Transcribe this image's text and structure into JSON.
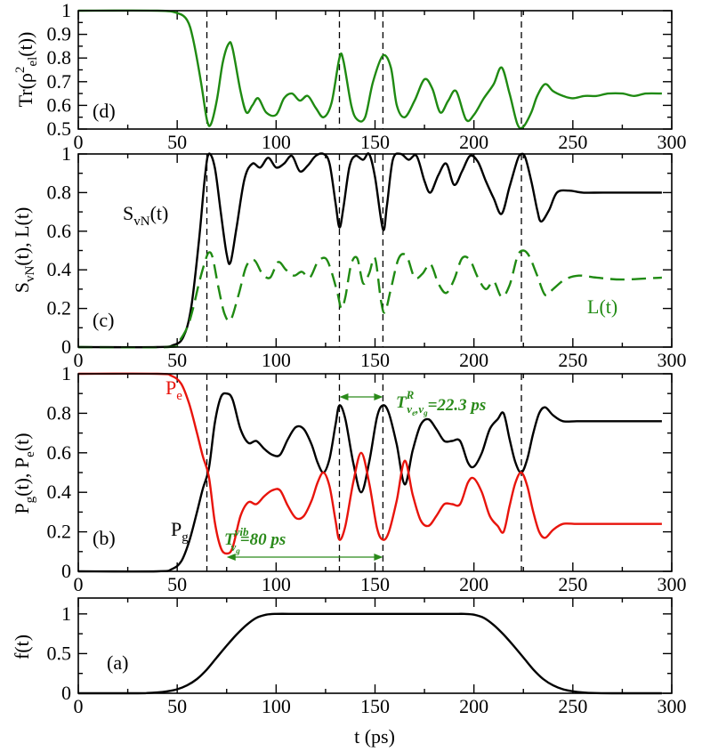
{
  "colors": {
    "black": "#000000",
    "green": "#1f8a12",
    "red": "#e8140c",
    "annotation": "#2a8a1a"
  },
  "shared": {
    "xlabel": "t (ps)",
    "xlim": [
      0,
      300
    ],
    "xticks": [
      "0",
      "50",
      "100",
      "150",
      "200",
      "250",
      "300"
    ],
    "vlines": [
      65,
      132,
      154,
      224
    ]
  },
  "chart_data": [
    {
      "id": "d",
      "type": "line",
      "panel_label": "(d)",
      "ylabel": "Tr(ρ²el(t))",
      "ylim": [
        0.5,
        1.0
      ],
      "yticks": [
        "0.5",
        "0.6",
        "0.7",
        "0.8",
        "0.9",
        "1"
      ],
      "series": [
        {
          "name": "Tr(rho^2_el)",
          "color": "#1f8a12",
          "style": "solid",
          "x": [
            0,
            40,
            50,
            55,
            58,
            62,
            65,
            67,
            70,
            73,
            76,
            78,
            82,
            85,
            88,
            91,
            95,
            100,
            104,
            108,
            112,
            116,
            120,
            124,
            128,
            132,
            134,
            138,
            141,
            145,
            149,
            154,
            158,
            161,
            165,
            170,
            175,
            179,
            183,
            187,
            191,
            196,
            200,
            205,
            210,
            214,
            218,
            222,
            225,
            229,
            232,
            236,
            240,
            245,
            250,
            256,
            262,
            268,
            275,
            281,
            287,
            295
          ],
          "y": [
            1.0,
            1.0,
            0.99,
            0.96,
            0.88,
            0.7,
            0.54,
            0.52,
            0.62,
            0.78,
            0.86,
            0.84,
            0.66,
            0.57,
            0.6,
            0.63,
            0.57,
            0.56,
            0.63,
            0.65,
            0.62,
            0.64,
            0.59,
            0.55,
            0.61,
            0.8,
            0.79,
            0.6,
            0.54,
            0.55,
            0.7,
            0.81,
            0.76,
            0.6,
            0.55,
            0.62,
            0.71,
            0.67,
            0.57,
            0.62,
            0.66,
            0.54,
            0.56,
            0.63,
            0.69,
            0.76,
            0.65,
            0.52,
            0.51,
            0.57,
            0.64,
            0.69,
            0.66,
            0.64,
            0.63,
            0.64,
            0.64,
            0.65,
            0.65,
            0.64,
            0.65,
            0.65
          ]
        }
      ]
    },
    {
      "id": "c",
      "type": "line",
      "panel_label": "(c)",
      "ylabel": "SvN(t), L(t)",
      "ylim": [
        0,
        1.0
      ],
      "yticks": [
        "0",
        "0.2",
        "0.4",
        "0.6",
        "0.8",
        "1"
      ],
      "curve_labels": {
        "svn": "SvN(t)",
        "l": "L(t)"
      },
      "series": [
        {
          "name": "S_vN(t)",
          "color": "#000000",
          "style": "solid",
          "x": [
            0,
            40,
            48,
            53,
            57,
            61,
            64,
            66,
            69,
            72,
            75,
            77,
            80,
            84,
            88,
            92,
            96,
            100,
            104,
            108,
            112,
            116,
            120,
            124,
            127,
            130,
            132,
            134,
            137,
            140,
            144,
            147,
            150,
            154,
            156,
            159,
            163,
            167,
            171,
            175,
            178,
            182,
            186,
            190,
            194,
            198,
            202,
            206,
            210,
            214,
            218,
            222,
            224,
            226,
            229,
            232,
            234,
            238,
            242,
            248,
            255,
            265,
            280,
            295
          ],
          "y": [
            0,
            0,
            0.01,
            0.05,
            0.2,
            0.55,
            0.88,
            1.0,
            0.93,
            0.7,
            0.48,
            0.44,
            0.62,
            0.87,
            0.95,
            0.93,
            0.98,
            0.93,
            0.95,
            0.99,
            0.91,
            0.94,
            0.99,
            1.0,
            0.95,
            0.75,
            0.62,
            0.72,
            0.93,
            0.99,
            0.97,
            1.0,
            0.88,
            0.61,
            0.73,
            0.97,
            1.0,
            0.97,
            0.99,
            0.86,
            0.8,
            0.89,
            0.95,
            0.84,
            0.91,
            0.99,
            0.96,
            0.86,
            0.77,
            0.69,
            0.83,
            0.97,
            1.0,
            0.98,
            0.86,
            0.71,
            0.65,
            0.71,
            0.8,
            0.81,
            0.8,
            0.8,
            0.8,
            0.8
          ]
        },
        {
          "name": "L(t)",
          "color": "#1f8a12",
          "style": "dashed",
          "x": [
            0,
            45,
            50,
            55,
            58,
            61,
            64,
            66,
            68,
            71,
            74,
            77,
            81,
            85,
            89,
            93,
            97,
            101,
            105,
            109,
            113,
            117,
            121,
            125,
            128,
            131,
            133,
            135,
            138,
            141,
            144,
            147,
            150,
            153,
            155,
            158,
            162,
            166,
            170,
            174,
            178,
            182,
            186,
            190,
            194,
            198,
            202,
            206,
            210,
            214,
            218,
            222,
            225,
            228,
            232,
            236,
            240,
            246,
            253,
            262,
            275,
            295
          ],
          "y": [
            0,
            0,
            0.02,
            0.1,
            0.2,
            0.33,
            0.44,
            0.49,
            0.46,
            0.3,
            0.17,
            0.14,
            0.27,
            0.42,
            0.45,
            0.38,
            0.36,
            0.44,
            0.4,
            0.37,
            0.39,
            0.36,
            0.44,
            0.46,
            0.39,
            0.28,
            0.2,
            0.26,
            0.43,
            0.46,
            0.33,
            0.38,
            0.46,
            0.24,
            0.18,
            0.3,
            0.46,
            0.47,
            0.36,
            0.38,
            0.43,
            0.33,
            0.28,
            0.35,
            0.46,
            0.45,
            0.36,
            0.3,
            0.34,
            0.26,
            0.32,
            0.47,
            0.5,
            0.47,
            0.37,
            0.27,
            0.3,
            0.35,
            0.37,
            0.36,
            0.35,
            0.36
          ]
        }
      ]
    },
    {
      "id": "b",
      "type": "line",
      "panel_label": "(b)",
      "ylabel": "Pg(t), Pe(t)",
      "ylim": [
        0,
        1.0
      ],
      "yticks": [
        "0",
        "0.2",
        "0.4",
        "0.6",
        "0.8",
        "1"
      ],
      "curve_labels": {
        "pe": "Pe",
        "pg": "Pg"
      },
      "annotations": {
        "vib": {
          "prefix": "T",
          "sup": "vib",
          "sub": "vg",
          "text": "=80 ps",
          "from": 75,
          "to": 154
        },
        "rabi": {
          "prefix": "T",
          "sup": "R",
          "sub": "ve,vg",
          "text": "=22.3 ps",
          "from": 132,
          "to": 154
        }
      },
      "series": [
        {
          "name": "P_g(t)",
          "color": "#000000",
          "style": "solid",
          "x": [
            0,
            40,
            47,
            52,
            56,
            60,
            63,
            66,
            69,
            72,
            75,
            78,
            82,
            86,
            90,
            94,
            98,
            102,
            106,
            110,
            114,
            118,
            121,
            124,
            127,
            130,
            132,
            135,
            139,
            143,
            147,
            151,
            154,
            157,
            161,
            165,
            169,
            173,
            177,
            181,
            185,
            189,
            193,
            197,
            200,
            204,
            208,
            212,
            215,
            218,
            221,
            224,
            227,
            230,
            233,
            236,
            240,
            245,
            252,
            262,
            280,
            295
          ],
          "y": [
            0,
            0,
            0.01,
            0.05,
            0.15,
            0.3,
            0.42,
            0.52,
            0.75,
            0.88,
            0.9,
            0.87,
            0.72,
            0.65,
            0.66,
            0.62,
            0.59,
            0.59,
            0.67,
            0.73,
            0.72,
            0.64,
            0.55,
            0.5,
            0.57,
            0.74,
            0.84,
            0.77,
            0.55,
            0.4,
            0.55,
            0.78,
            0.84,
            0.8,
            0.64,
            0.44,
            0.61,
            0.74,
            0.77,
            0.72,
            0.66,
            0.66,
            0.66,
            0.55,
            0.53,
            0.6,
            0.72,
            0.77,
            0.8,
            0.67,
            0.55,
            0.5,
            0.57,
            0.7,
            0.8,
            0.83,
            0.79,
            0.76,
            0.76,
            0.76,
            0.76,
            0.76
          ]
        },
        {
          "name": "P_e(t)",
          "color": "#e8140c",
          "style": "solid",
          "x": [
            0,
            40,
            47,
            52,
            56,
            60,
            63,
            66,
            69,
            72,
            75,
            78,
            82,
            86,
            90,
            94,
            98,
            102,
            106,
            110,
            114,
            118,
            121,
            124,
            127,
            130,
            132,
            135,
            139,
            143,
            147,
            151,
            154,
            157,
            161,
            165,
            169,
            173,
            177,
            181,
            185,
            189,
            193,
            197,
            200,
            204,
            208,
            212,
            215,
            218,
            221,
            224,
            227,
            230,
            233,
            236,
            240,
            245,
            252,
            262,
            280,
            295
          ],
          "y": [
            1.0,
            1.0,
            0.99,
            0.95,
            0.85,
            0.7,
            0.58,
            0.48,
            0.25,
            0.12,
            0.09,
            0.12,
            0.28,
            0.35,
            0.34,
            0.38,
            0.41,
            0.41,
            0.33,
            0.27,
            0.28,
            0.36,
            0.45,
            0.5,
            0.43,
            0.26,
            0.16,
            0.23,
            0.45,
            0.6,
            0.45,
            0.22,
            0.16,
            0.2,
            0.36,
            0.56,
            0.39,
            0.26,
            0.23,
            0.28,
            0.34,
            0.34,
            0.34,
            0.45,
            0.47,
            0.4,
            0.28,
            0.23,
            0.2,
            0.33,
            0.45,
            0.5,
            0.43,
            0.3,
            0.2,
            0.17,
            0.21,
            0.24,
            0.24,
            0.24,
            0.24,
            0.24
          ]
        }
      ]
    },
    {
      "id": "a",
      "type": "line",
      "panel_label": "(a)",
      "ylabel": "f(t)",
      "ylim": [
        0,
        1.2
      ],
      "yticks": [
        "0",
        "0.5",
        "1"
      ],
      "ytick_values": [
        0,
        0.5,
        1
      ],
      "series": [
        {
          "name": "f(t)",
          "color": "#000000",
          "style": "solid",
          "x": [
            0,
            30,
            35,
            40,
            45,
            50,
            55,
            60,
            65,
            70,
            75,
            80,
            85,
            90,
            95,
            100,
            110,
            120,
            130,
            140,
            150,
            160,
            170,
            180,
            190,
            195,
            200,
            205,
            210,
            215,
            220,
            225,
            230,
            235,
            240,
            245,
            250,
            255,
            260,
            270,
            280,
            295
          ],
          "y": [
            0,
            0,
            0.003,
            0.01,
            0.025,
            0.05,
            0.1,
            0.18,
            0.3,
            0.45,
            0.6,
            0.74,
            0.86,
            0.95,
            0.99,
            1.0,
            1.0,
            1.0,
            1.0,
            1.0,
            1.0,
            1.0,
            1.0,
            1.0,
            1.0,
            1.0,
            0.99,
            0.95,
            0.86,
            0.74,
            0.6,
            0.45,
            0.3,
            0.18,
            0.1,
            0.05,
            0.025,
            0.01,
            0.003,
            0,
            0,
            0
          ]
        }
      ]
    }
  ]
}
